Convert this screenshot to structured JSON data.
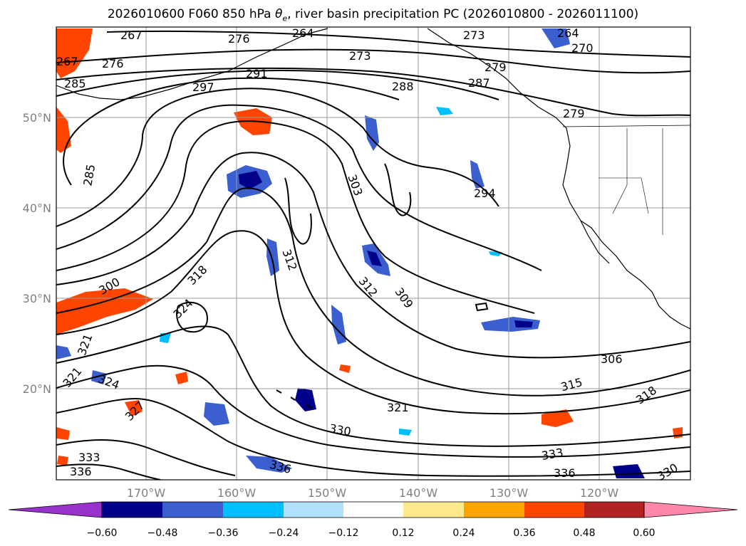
{
  "title": {
    "prefix": "2026010600 F060 850 hPa ",
    "theta": "θ",
    "sub": "e",
    "suffix": ", river basin precipitation PC (2026010800 - 2026011100)"
  },
  "lat_ticks": [
    "50°N",
    "40°N",
    "30°N",
    "20°N"
  ],
  "lon_ticks": [
    "170°W",
    "160°W",
    "150°W",
    "140°W",
    "130°W",
    "120°W"
  ],
  "contour_labels": [
    "267",
    "276",
    "264",
    "273",
    "264",
    "270",
    "267",
    "273",
    "276",
    "285",
    "297",
    "291",
    "279",
    "288",
    "287",
    "279",
    "285",
    "303",
    "294",
    "312",
    "300",
    "318",
    "324",
    "312",
    "309",
    "321",
    "321",
    "306",
    "324",
    "315",
    "327",
    "321",
    "318",
    "330",
    "333",
    "333",
    "336",
    "336",
    "336",
    "330"
  ],
  "colorbar": {
    "tick_labels": [
      "−0.60",
      "−0.48",
      "−0.36",
      "−0.24",
      "−0.12",
      "0.12",
      "0.24",
      "0.36",
      "0.48",
      "0.60"
    ],
    "colors": [
      "#9932cc",
      "#00008b",
      "#3c5fd0",
      "#00bfff",
      "#b0e0ff",
      "#ffffff",
      "#ffe98c",
      "#ffa500",
      "#ff4500",
      "#b22222",
      "#ff88aa"
    ]
  },
  "colors": {
    "contour": "#000000",
    "grid": "#999999",
    "tick": "#808080"
  }
}
